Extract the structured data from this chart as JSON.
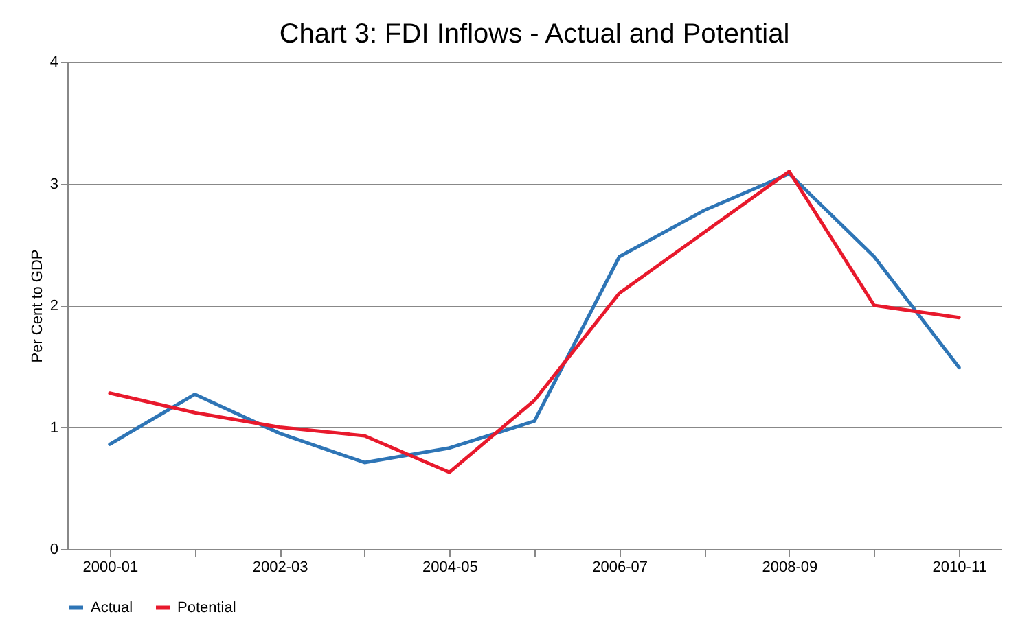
{
  "chart_data": {
    "type": "line",
    "title": "Chart  3: FDI  Inflows - Actual and Potential",
    "ylabel": "Per Cent to GDP",
    "categories": [
      "2000-01",
      null,
      "2002-03",
      null,
      "2004-05",
      null,
      "2006-07",
      null,
      "2008-09",
      null,
      "2010-11"
    ],
    "series": [
      {
        "name": "Actual",
        "color": "#2e75b6",
        "values": [
          0.86,
          1.27,
          0.95,
          0.71,
          0.83,
          1.05,
          2.4,
          2.78,
          3.08,
          2.4,
          1.49
        ]
      },
      {
        "name": "Potential",
        "color": "#e8192c",
        "values": [
          1.28,
          1.12,
          1.0,
          0.93,
          0.63,
          1.22,
          2.1,
          2.6,
          3.1,
          2.0,
          1.9
        ]
      }
    ],
    "ylim": [
      0,
      4
    ],
    "yticks": [
      0,
      1,
      2,
      3,
      4
    ],
    "grid": "y",
    "legend": "bottom",
    "marker": "none",
    "line_style": "solid"
  }
}
